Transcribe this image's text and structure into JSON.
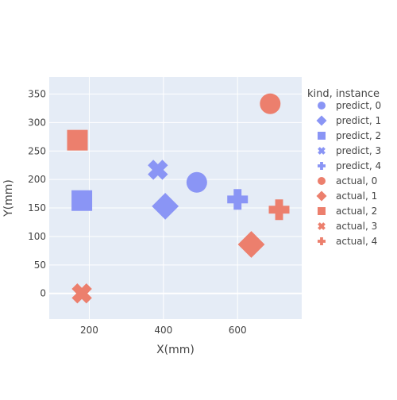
{
  "chart_data": {
    "type": "scatter",
    "title": "",
    "xlabel": "X(mm)",
    "ylabel": "Y(mm)",
    "xlim": [
      92,
      773
    ],
    "ylim": [
      -45,
      380
    ],
    "xticks": [
      200,
      400,
      600
    ],
    "yticks": [
      0,
      50,
      100,
      150,
      200,
      250,
      300,
      350
    ],
    "grid": true,
    "legend_title": "kind, instance",
    "legend_position": "right",
    "colors": {
      "predict": "#8a95f5",
      "actual": "#ec7f6d",
      "plot_bg": "#e5ecf6",
      "grid": "#ffffff",
      "text": "#444444"
    },
    "series": [
      {
        "name": "predict, 0",
        "kind": "predict",
        "symbol": "circle",
        "x": 490,
        "y": 195
      },
      {
        "name": "predict, 1",
        "kind": "predict",
        "symbol": "diamond",
        "x": 405,
        "y": 153
      },
      {
        "name": "predict, 2",
        "kind": "predict",
        "symbol": "square",
        "x": 180,
        "y": 163
      },
      {
        "name": "predict, 3",
        "kind": "predict",
        "symbol": "x",
        "x": 385,
        "y": 217
      },
      {
        "name": "predict, 4",
        "kind": "predict",
        "symbol": "cross",
        "x": 600,
        "y": 165
      },
      {
        "name": "actual, 0",
        "kind": "actual",
        "symbol": "circle",
        "x": 688,
        "y": 333
      },
      {
        "name": "actual, 1",
        "kind": "actual",
        "symbol": "diamond",
        "x": 637,
        "y": 86
      },
      {
        "name": "actual, 2",
        "kind": "actual",
        "symbol": "square",
        "x": 168,
        "y": 269
      },
      {
        "name": "actual, 3",
        "kind": "actual",
        "symbol": "x",
        "x": 180,
        "y": 0
      },
      {
        "name": "actual, 4",
        "kind": "actual",
        "symbol": "cross",
        "x": 712,
        "y": 147
      }
    ]
  }
}
